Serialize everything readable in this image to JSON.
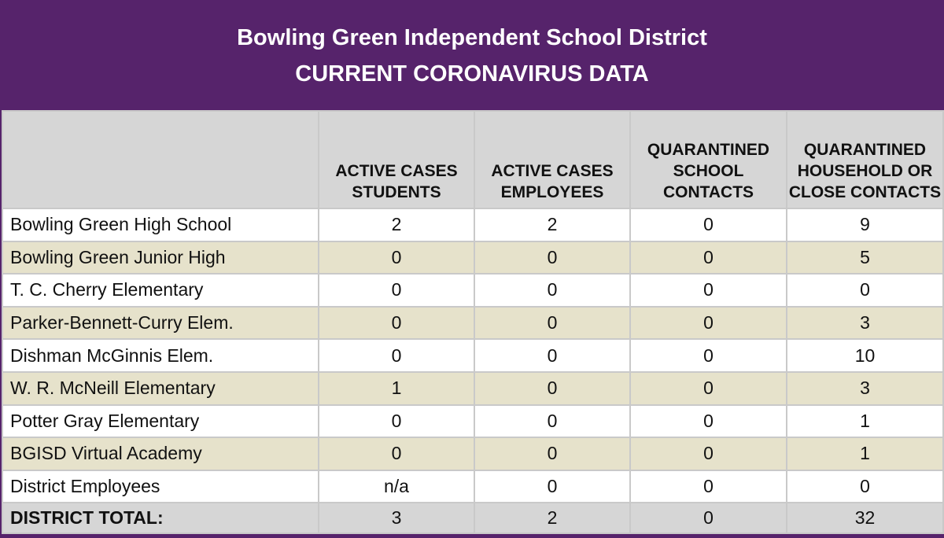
{
  "title": {
    "line1": "Bowling Green Independent School District",
    "line2": "CURRENT CORONAVIRUS DATA"
  },
  "colors": {
    "frame": "#56236b",
    "header_bg": "#d6d6d6",
    "alt_row_bg": "#e6e2cb",
    "grid": "#c9c9c9"
  },
  "columns": [
    "",
    "ACTIVE CASES STUDENTS",
    "ACTIVE CASES EMPLOYEES",
    "QUARANTINED SCHOOL CONTACTS",
    "QUARANTINED HOUSEHOLD OR CLOSE CONTACTS"
  ],
  "rows": [
    [
      "Bowling Green High School",
      "2",
      "2",
      "0",
      "9"
    ],
    [
      "Bowling Green Junior High",
      "0",
      "0",
      "0",
      "5"
    ],
    [
      "T. C. Cherry Elementary",
      "0",
      "0",
      "0",
      "0"
    ],
    [
      "Parker-Bennett-Curry Elem.",
      "0",
      "0",
      "0",
      "3"
    ],
    [
      "Dishman McGinnis Elem.",
      "0",
      "0",
      "0",
      "10"
    ],
    [
      "W. R. McNeill Elementary",
      "1",
      "0",
      "0",
      "3"
    ],
    [
      "Potter Gray Elementary",
      "0",
      "0",
      "0",
      "1"
    ],
    [
      "BGISD Virtual Academy",
      "0",
      "0",
      "0",
      "1"
    ],
    [
      "District Employees",
      "n/a",
      "0",
      "0",
      "0"
    ]
  ],
  "total": [
    "DISTRICT TOTAL:",
    "3",
    "2",
    "0",
    "32"
  ]
}
